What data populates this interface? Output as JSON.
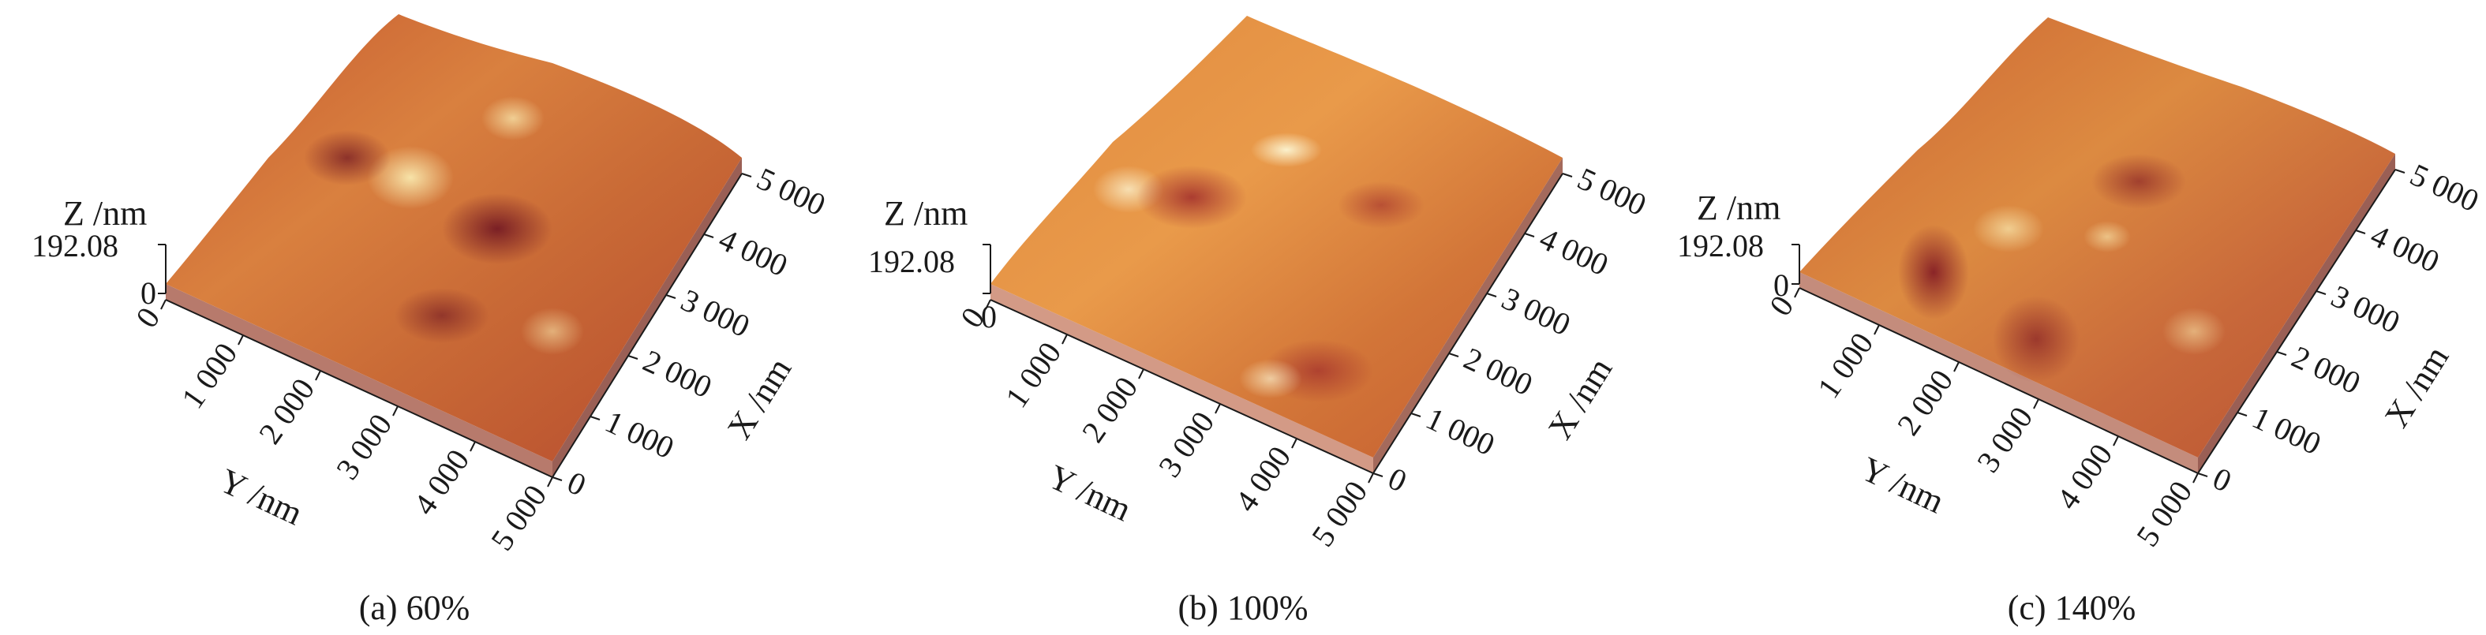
{
  "colors": {
    "surface_dark": "#8e2b2b",
    "surface_mid": "#c9652f",
    "surface_light": "#e8a35c",
    "highlight": "#f7e3a8",
    "side_wall": "#b77a6c"
  },
  "axes": {
    "z_title": "Z /nm",
    "z_max": "192.08",
    "z_zero": "0",
    "y_title": "Y /nm",
    "x_title": "X /nm",
    "y_ticks": [
      "0",
      "1 000",
      "2 000",
      "3 000",
      "4 000",
      "5 000"
    ],
    "x_ticks": [
      "0",
      "1 000",
      "2 000",
      "3 000",
      "4 000",
      "5 000"
    ]
  },
  "panels": [
    {
      "caption": "(a) 60%"
    },
    {
      "caption": "(b) 100%"
    },
    {
      "caption": "(c) 140%"
    }
  ]
}
